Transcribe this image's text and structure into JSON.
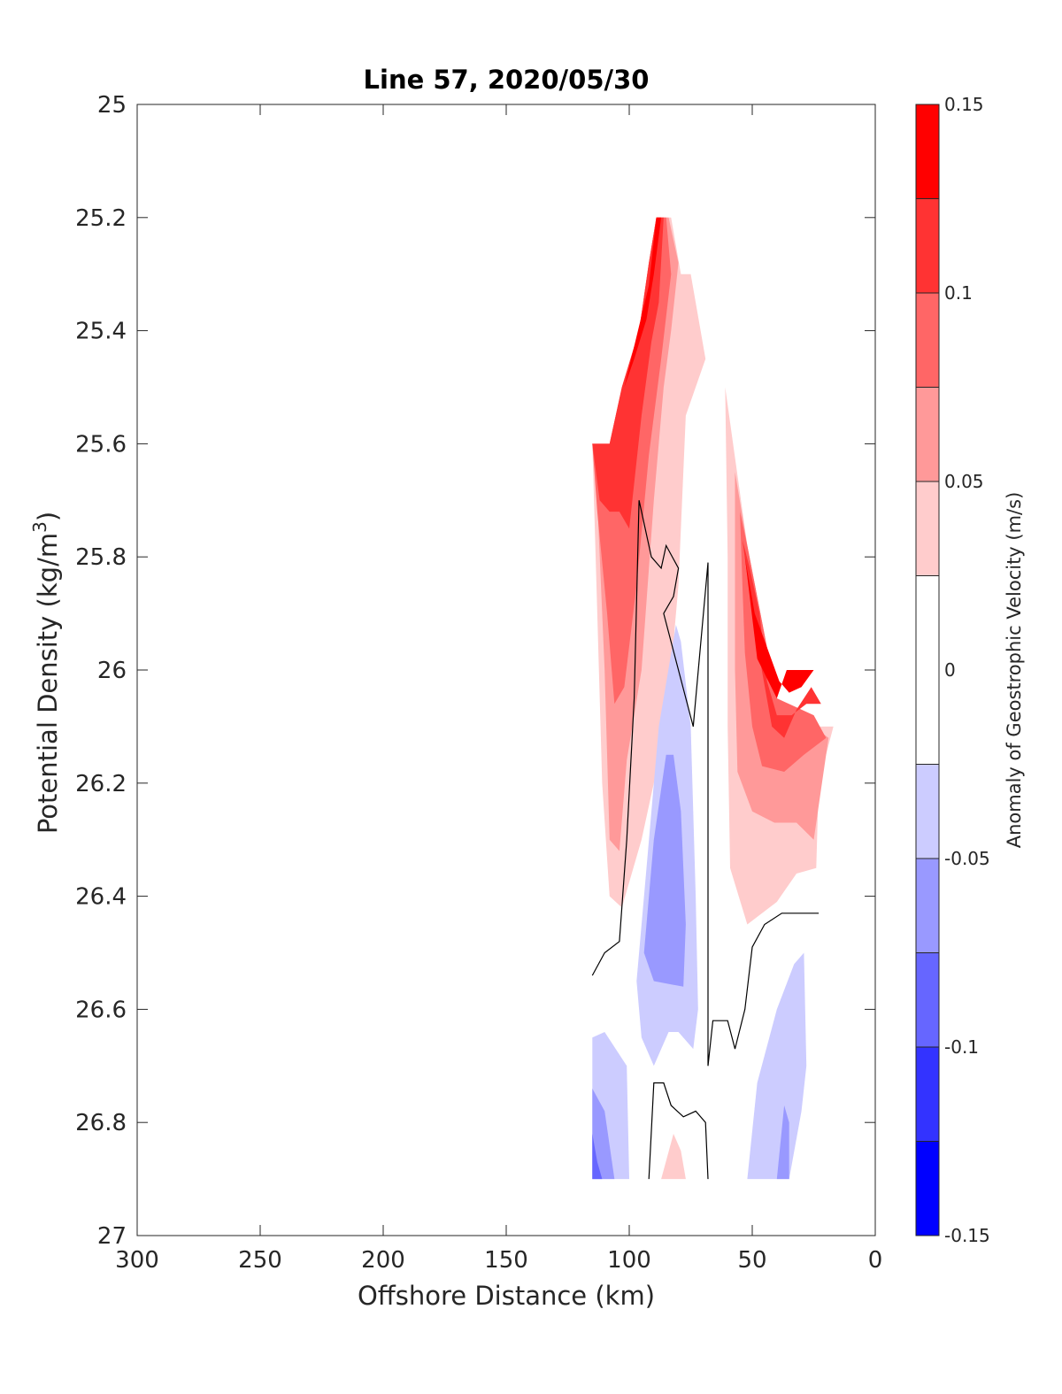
{
  "chart_data": {
    "type": "contourf",
    "title": "Line 57, 2020/05/30",
    "xlabel": "Offshore Distance (km)",
    "ylabel_main": "Potential Density (kg/m",
    "ylabel_sup": "3",
    "ylabel_end": ")",
    "xlim": [
      300,
      0
    ],
    "ylim": [
      27,
      25
    ],
    "x_reversed": true,
    "y_reversed": true,
    "xticks": [
      300,
      250,
      200,
      150,
      100,
      50,
      0
    ],
    "yticks": [
      25,
      25.2,
      25.4,
      25.6,
      25.8,
      26,
      26.2,
      26.4,
      26.6,
      26.8,
      27
    ],
    "colorbar": {
      "label": "Anomaly of Geostrophic Velocity (m/s)",
      "range": [
        -0.15,
        0.15
      ],
      "ticks": [
        0.15,
        0.1,
        0.05,
        0,
        -0.05,
        -0.1,
        -0.15
      ],
      "tick_labels": [
        "0.15",
        "0.1",
        "0.05",
        "0",
        "-0.05",
        "-0.1",
        "-0.15"
      ],
      "levels": [
        {
          "from": 0.125,
          "to": 0.15,
          "color": "#ff0000"
        },
        {
          "from": 0.1,
          "to": 0.125,
          "color": "#ff3333"
        },
        {
          "from": 0.075,
          "to": 0.1,
          "color": "#ff6666"
        },
        {
          "from": 0.05,
          "to": 0.075,
          "color": "#ff9999"
        },
        {
          "from": 0.025,
          "to": 0.05,
          "color": "#ffcccc"
        },
        {
          "from": -0.025,
          "to": 0.025,
          "color": "#ffffff"
        },
        {
          "from": -0.05,
          "to": -0.025,
          "color": "#ccccff"
        },
        {
          "from": -0.075,
          "to": -0.05,
          "color": "#9999ff"
        },
        {
          "from": -0.1,
          "to": -0.075,
          "color": "#6666ff"
        },
        {
          "from": -0.125,
          "to": -0.1,
          "color": "#3333ff"
        },
        {
          "from": -0.15,
          "to": -0.125,
          "color": "#0000ff"
        }
      ]
    },
    "filled_regions": [
      {
        "level": 0.0375,
        "color": "#ffcccc",
        "points": [
          [
            89,
            25.2
          ],
          [
            83,
            25.2
          ],
          [
            79,
            25.3
          ],
          [
            75,
            25.3
          ],
          [
            69,
            25.45
          ],
          [
            77,
            25.55
          ],
          [
            80,
            25.85
          ],
          [
            85,
            26.1
          ],
          [
            95,
            26.3
          ],
          [
            103,
            26.42
          ],
          [
            108,
            26.4
          ],
          [
            111,
            26.2
          ],
          [
            113,
            25.9
          ],
          [
            115,
            25.6
          ],
          [
            108,
            25.6
          ],
          [
            103,
            25.5
          ],
          [
            96,
            25.4
          ],
          [
            92,
            25.28
          ]
        ]
      },
      {
        "level": 0.0375,
        "color": "#ffcccc",
        "points": [
          [
            61,
            25.5
          ],
          [
            52,
            25.78
          ],
          [
            40,
            26.05
          ],
          [
            25,
            26.1
          ],
          [
            17,
            26.1
          ],
          [
            23,
            26.2
          ],
          [
            24,
            26.35
          ],
          [
            32,
            26.36
          ],
          [
            40,
            26.41
          ],
          [
            52,
            26.45
          ],
          [
            59,
            26.35
          ],
          [
            60,
            26.1
          ],
          [
            60,
            25.8
          ]
        ]
      },
      {
        "level": 0.0625,
        "color": "#ff9999",
        "points": [
          [
            89,
            25.2
          ],
          [
            84,
            25.2
          ],
          [
            80,
            25.28
          ],
          [
            83,
            25.4
          ],
          [
            86,
            25.5
          ],
          [
            90,
            25.7
          ],
          [
            95,
            26.0
          ],
          [
            101,
            26.16
          ],
          [
            104,
            26.32
          ],
          [
            108,
            26.3
          ],
          [
            110,
            26.0
          ],
          [
            113,
            25.7
          ],
          [
            115,
            25.6
          ],
          [
            108,
            25.6
          ],
          [
            103,
            25.5
          ],
          [
            96,
            25.4
          ],
          [
            92,
            25.28
          ]
        ]
      },
      {
        "level": 0.0625,
        "color": "#ff9999",
        "points": [
          [
            57,
            25.65
          ],
          [
            52,
            25.78
          ],
          [
            40,
            26.05
          ],
          [
            25,
            26.1
          ],
          [
            19,
            26.12
          ],
          [
            25,
            26.3
          ],
          [
            32,
            26.27
          ],
          [
            41,
            26.27
          ],
          [
            50,
            26.25
          ],
          [
            56,
            26.18
          ],
          [
            57,
            26.0
          ],
          [
            57,
            25.8
          ]
        ]
      },
      {
        "level": 0.0875,
        "color": "#ff6666",
        "points": [
          [
            89,
            25.2
          ],
          [
            85,
            25.2
          ],
          [
            83,
            25.3
          ],
          [
            87,
            25.45
          ],
          [
            92,
            25.62
          ],
          [
            97,
            25.85
          ],
          [
            102,
            26.03
          ],
          [
            106,
            26.06
          ],
          [
            109,
            25.9
          ],
          [
            113,
            25.72
          ],
          [
            115,
            25.6
          ],
          [
            108,
            25.6
          ],
          [
            103,
            25.5
          ],
          [
            96,
            25.4
          ],
          [
            92,
            25.28
          ]
        ]
      },
      {
        "level": 0.0875,
        "color": "#ff6666",
        "points": [
          [
            55,
            25.72
          ],
          [
            52,
            25.78
          ],
          [
            40,
            26.05
          ],
          [
            25,
            26.08
          ],
          [
            20,
            26.12
          ],
          [
            29,
            26.15
          ],
          [
            37,
            26.18
          ],
          [
            46,
            26.17
          ],
          [
            50,
            26.1
          ],
          [
            53,
            25.97
          ],
          [
            54,
            25.85
          ]
        ]
      },
      {
        "level": 0.1125,
        "color": "#ff3333",
        "points": [
          [
            89,
            25.2
          ],
          [
            86,
            25.2
          ],
          [
            88,
            25.35
          ],
          [
            91,
            25.42
          ],
          [
            95,
            25.55
          ],
          [
            100,
            25.75
          ],
          [
            104,
            25.72
          ],
          [
            108,
            25.72
          ],
          [
            112,
            25.7
          ],
          [
            115,
            25.6
          ],
          [
            108,
            25.6
          ],
          [
            103,
            25.5
          ],
          [
            96,
            25.4
          ],
          [
            92,
            25.28
          ]
        ]
      },
      {
        "level": 0.1125,
        "color": "#ff3333",
        "points": [
          [
            54,
            25.77
          ],
          [
            49,
            25.93
          ],
          [
            42,
            26.1
          ],
          [
            37,
            26.12
          ],
          [
            32,
            26.07
          ],
          [
            26,
            26.03
          ],
          [
            22,
            26.06
          ],
          [
            28,
            26.06
          ],
          [
            34,
            26.08
          ],
          [
            40,
            26.08
          ],
          [
            44,
            26.02
          ],
          [
            47,
            25.9
          ],
          [
            51,
            25.82
          ]
        ]
      },
      {
        "level": 0.1375,
        "color": "#ff0000",
        "points": [
          [
            53,
            25.8
          ],
          [
            48,
            25.98
          ],
          [
            40,
            26.05
          ],
          [
            36,
            26.0
          ],
          [
            25,
            26.0
          ],
          [
            30,
            26.03
          ],
          [
            35,
            26.04
          ],
          [
            39,
            26.02
          ],
          [
            44,
            25.96
          ],
          [
            49,
            25.9
          ]
        ]
      },
      {
        "level": 0.1375,
        "color": "#ff0000",
        "points": [
          [
            89,
            25.2
          ],
          [
            87,
            25.2
          ],
          [
            90,
            25.3
          ],
          [
            93,
            25.38
          ],
          [
            98,
            25.45
          ],
          [
            102,
            25.5
          ],
          [
            92,
            25.32
          ]
        ]
      },
      {
        "level": -0.0375,
        "color": "#ccccff",
        "points": [
          [
            81,
            25.92
          ],
          [
            88,
            26.1
          ],
          [
            93,
            26.35
          ],
          [
            97,
            26.55
          ],
          [
            95,
            26.65
          ],
          [
            90,
            26.7
          ],
          [
            84,
            26.64
          ],
          [
            80,
            26.64
          ],
          [
            74,
            26.67
          ],
          [
            72,
            26.6
          ],
          [
            73,
            26.4
          ],
          [
            75,
            26.1
          ],
          [
            79,
            25.95
          ]
        ]
      },
      {
        "level": -0.0375,
        "color": "#ccccff",
        "points": [
          [
            115,
            26.65
          ],
          [
            110,
            26.64
          ],
          [
            101,
            26.7
          ],
          [
            100,
            26.9
          ],
          [
            115,
            26.9
          ]
        ]
      },
      {
        "level": -0.0375,
        "color": "#ccccff",
        "points": [
          [
            29,
            26.5
          ],
          [
            33,
            26.52
          ],
          [
            40,
            26.6
          ],
          [
            48,
            26.73
          ],
          [
            52,
            26.9
          ],
          [
            35,
            26.9
          ],
          [
            30,
            26.78
          ],
          [
            28,
            26.7
          ]
        ]
      },
      {
        "level": -0.0625,
        "color": "#9999ff",
        "points": [
          [
            85,
            26.15
          ],
          [
            90,
            26.3
          ],
          [
            94,
            26.5
          ],
          [
            90,
            26.55
          ],
          [
            78,
            26.56
          ],
          [
            77,
            26.45
          ],
          [
            79,
            26.25
          ],
          [
            82,
            26.15
          ]
        ]
      },
      {
        "level": -0.0625,
        "color": "#9999ff",
        "points": [
          [
            115,
            26.74
          ],
          [
            110,
            26.78
          ],
          [
            106,
            26.9
          ],
          [
            115,
            26.9
          ]
        ]
      },
      {
        "level": -0.0625,
        "color": "#9999ff",
        "points": [
          [
            37,
            26.77
          ],
          [
            40,
            26.9
          ],
          [
            35,
            26.9
          ],
          [
            35,
            26.8
          ]
        ]
      },
      {
        "level": -0.0875,
        "color": "#6666ff",
        "points": [
          [
            115,
            26.82
          ],
          [
            113,
            26.87
          ],
          [
            111,
            26.9
          ],
          [
            115,
            26.9
          ]
        ]
      },
      {
        "level": 0.0375,
        "color": "#ffcccc",
        "points": [
          [
            82,
            26.82
          ],
          [
            87,
            26.9
          ],
          [
            77,
            26.9
          ],
          [
            79,
            26.85
          ]
        ]
      }
    ],
    "zero_contours": [
      [
        [
          115,
          26.54
        ],
        [
          110,
          26.5
        ],
        [
          104,
          26.48
        ],
        [
          101,
          26.3
        ],
        [
          98,
          26.05
        ],
        [
          96,
          25.7
        ],
        [
          91,
          25.8
        ],
        [
          87,
          25.82
        ],
        [
          85,
          25.78
        ],
        [
          80,
          25.82
        ],
        [
          82,
          25.87
        ],
        [
          86,
          25.9
        ],
        [
          74,
          26.1
        ],
        [
          68,
          25.81
        ],
        [
          68,
          26.7
        ],
        [
          66,
          26.62
        ],
        [
          60,
          26.62
        ],
        [
          57,
          26.67
        ],
        [
          53,
          26.6
        ],
        [
          50,
          26.49
        ],
        [
          45,
          26.45
        ],
        [
          38,
          26.43
        ],
        [
          33,
          26.43
        ],
        [
          27,
          26.43
        ],
        [
          23,
          26.43
        ]
      ],
      [
        [
          92,
          26.9
        ],
        [
          90,
          26.73
        ],
        [
          86,
          26.73
        ],
        [
          83,
          26.77
        ],
        [
          78,
          26.79
        ],
        [
          73,
          26.78
        ],
        [
          69,
          26.8
        ],
        [
          68,
          26.9
        ]
      ]
    ]
  }
}
